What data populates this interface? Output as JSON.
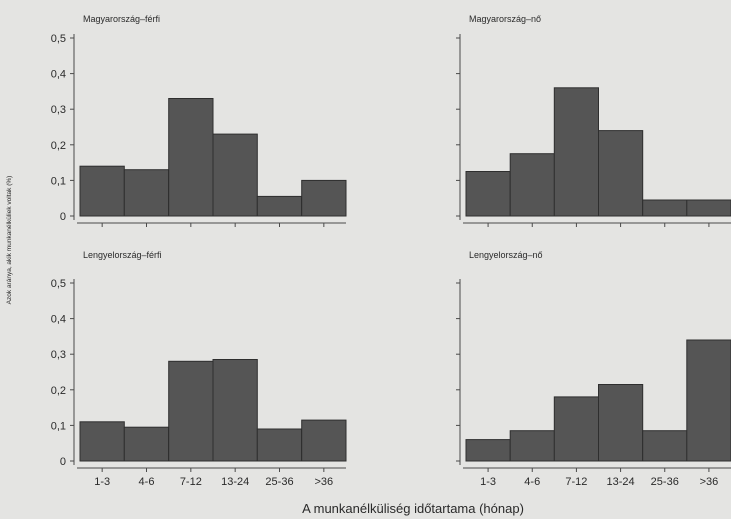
{
  "figure": {
    "xlabel": "A munkanélküliség időtartama (hónap)",
    "ylabel": "Azok aránya, akik munkanélküliek voltak (%)"
  },
  "chart_data": [
    {
      "type": "bar",
      "title": "Magyarország–férfi",
      "categories": [
        "1-3",
        "4-6",
        "7-12",
        "13-24",
        "25-36",
        ">36"
      ],
      "values": [
        0.14,
        0.13,
        0.33,
        0.23,
        0.055,
        0.1
      ],
      "ylim": [
        0,
        0.5
      ],
      "yticks": [
        "0",
        "0,1",
        "0,2",
        "0,3",
        "0,4",
        "0,5"
      ],
      "grid": false
    },
    {
      "type": "bar",
      "title": "Magyarország–nő",
      "categories": [
        "1-3",
        "4-6",
        "7-12",
        "13-24",
        "25-36",
        ">36"
      ],
      "values": [
        0.125,
        0.175,
        0.36,
        0.24,
        0.045,
        0.045
      ],
      "ylim": [
        0,
        0.5
      ],
      "yticks": [
        "0",
        "0,1",
        "0,2",
        "0,3",
        "0,4",
        "0,5"
      ],
      "grid": false
    },
    {
      "type": "bar",
      "title": "Lengyelország–férfi",
      "categories": [
        "1-3",
        "4-6",
        "7-12",
        "13-24",
        "25-36",
        ">36"
      ],
      "values": [
        0.11,
        0.095,
        0.28,
        0.285,
        0.09,
        0.115
      ],
      "ylim": [
        0,
        0.5
      ],
      "yticks": [
        "0",
        "0,1",
        "0,2",
        "0,3",
        "0,4",
        "0,5"
      ],
      "grid": false
    },
    {
      "type": "bar",
      "title": "Lengyelország–nő",
      "categories": [
        "1-3",
        "4-6",
        "7-12",
        "13-24",
        "25-36",
        ">36"
      ],
      "values": [
        0.06,
        0.085,
        0.18,
        0.215,
        0.085,
        0.34
      ],
      "ylim": [
        0,
        0.5
      ],
      "yticks": [
        "0",
        "0,1",
        "0,2",
        "0,3",
        "0,4",
        "0,5"
      ],
      "grid": false
    }
  ],
  "colors": {
    "bar": "#555555",
    "bar_edge": "#2e2e2e",
    "axis": "#4a4a4a",
    "background": "#e4e4e2"
  }
}
